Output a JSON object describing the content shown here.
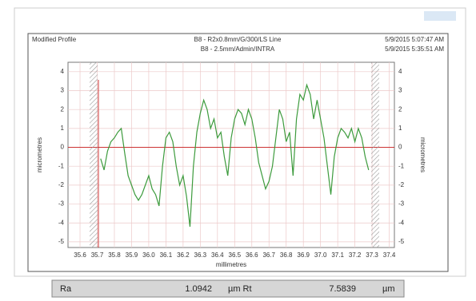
{
  "chart_data": {
    "type": "line",
    "panel_title": "Modified Profile",
    "subtitle_lines": [
      "B8 - R2x0.8mm/G/300/LS Line",
      "B8 - 2.5mm/Admin/INTRA"
    ],
    "timestamps": [
      "5/9/2015 5:07:47 AM",
      "5/9/2015 5:35:51 AM"
    ],
    "x_label": "millimetres",
    "y_label": "micrometres",
    "xlim": [
      35.53,
      37.43
    ],
    "ylim": [
      -5.3,
      4.5
    ],
    "xticks": [
      35.6,
      35.7,
      35.8,
      35.9,
      {
        "value": 36,
        "label": "36.0"
      },
      36.1,
      36.2,
      36.3,
      36.4,
      36.5,
      36.6,
      36.7,
      36.8,
      36.9,
      {
        "value": 37,
        "label": "37.0"
      },
      37.1,
      37.2,
      37.3,
      37.4
    ],
    "yticks": [
      -5,
      -4,
      -3,
      -2,
      -1,
      0,
      1,
      2,
      3,
      4
    ],
    "grid": true,
    "series": [
      {
        "color": "#3d9b3d",
        "x": [
          35.72,
          35.74,
          35.76,
          35.78,
          35.8,
          35.82,
          35.84,
          35.86,
          35.88,
          35.9,
          35.92,
          35.94,
          35.96,
          35.98,
          36.0,
          36.02,
          36.04,
          36.06,
          36.08,
          36.1,
          36.12,
          36.14,
          36.16,
          36.18,
          36.2,
          36.22,
          36.24,
          36.26,
          36.28,
          36.3,
          36.32,
          36.34,
          36.36,
          36.38,
          36.4,
          36.42,
          36.44,
          36.46,
          36.48,
          36.5,
          36.52,
          36.54,
          36.56,
          36.58,
          36.6,
          36.62,
          36.64,
          36.66,
          36.68,
          36.7,
          36.72,
          36.74,
          36.76,
          36.78,
          36.8,
          36.82,
          36.84,
          36.86,
          36.88,
          36.9,
          36.92,
          36.94,
          36.96,
          36.98,
          37.0,
          37.02,
          37.04,
          37.06,
          37.08,
          37.1,
          37.12,
          37.14,
          37.16,
          37.18,
          37.2,
          37.22,
          37.24,
          37.26,
          37.28
        ],
        "values": [
          -0.6,
          -1.2,
          -0.2,
          0.3,
          0.5,
          0.8,
          1.0,
          -0.3,
          -1.5,
          -2.0,
          -2.5,
          -2.8,
          -2.5,
          -2.0,
          -1.5,
          -2.2,
          -2.5,
          -3.1,
          -1.0,
          0.5,
          0.8,
          0.3,
          -1.0,
          -2.0,
          -1.5,
          -2.6,
          -4.2,
          -1.0,
          0.8,
          1.8,
          2.5,
          2.0,
          1.0,
          1.5,
          0.5,
          0.8,
          -0.5,
          -1.5,
          0.5,
          1.5,
          2.0,
          1.8,
          1.2,
          2.0,
          1.5,
          0.5,
          -0.8,
          -1.5,
          -2.2,
          -1.8,
          -1.0,
          0.5,
          2.0,
          1.5,
          0.3,
          0.8,
          -1.5,
          1.5,
          2.8,
          2.5,
          3.3,
          2.8,
          1.5,
          2.5,
          1.5,
          0.5,
          -1.0,
          -2.5,
          -0.5,
          0.5,
          1.0,
          0.8,
          0.5,
          1.0,
          0.3,
          1.0,
          0.5,
          -0.5,
          -1.2
        ]
      }
    ],
    "stats": {
      "ra_label": "Ra",
      "ra_value": 1.0942,
      "ra_unit": "µm Rt",
      "rt_value": 7.5839,
      "rt_unit": "µm"
    }
  }
}
